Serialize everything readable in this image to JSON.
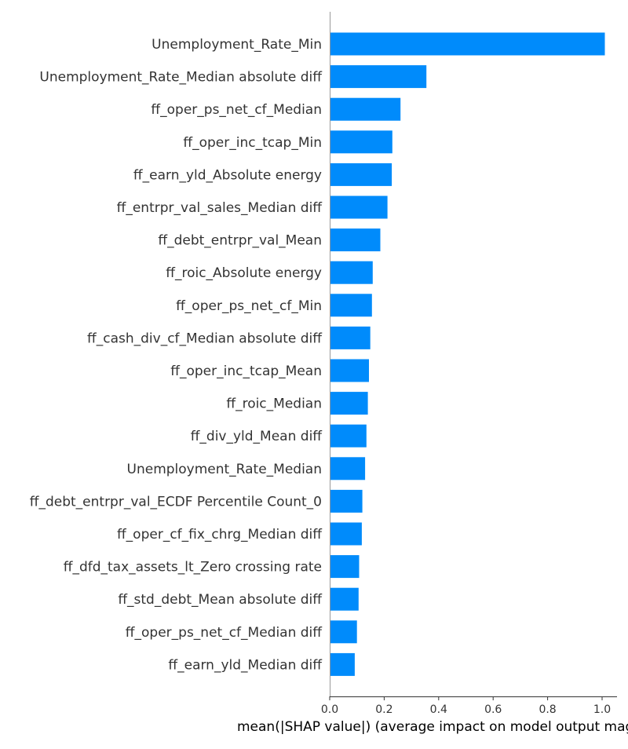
{
  "chart_data": {
    "type": "bar",
    "orientation": "horizontal",
    "title": "",
    "xlabel": "mean(|SHAP value|) (average impact on model output magnitude)",
    "ylabel": "",
    "xlim": [
      0,
      1.05
    ],
    "xticks": [
      "0.0",
      "0.2",
      "0.4",
      "0.6",
      "0.8",
      "1.0"
    ],
    "bar_color": "#008bfb",
    "grid": false,
    "legend": "none",
    "categories": [
      "Unemployment_Rate_Min",
      "Unemployment_Rate_Median absolute diff",
      "ff_oper_ps_net_cf_Median",
      "ff_oper_inc_tcap_Min",
      "ff_earn_yld_Absolute energy",
      "ff_entrpr_val_sales_Median diff",
      "ff_debt_entrpr_val_Mean",
      "ff_roic_Absolute energy",
      "ff_oper_ps_net_cf_Min",
      "ff_cash_div_cf_Median absolute diff",
      "ff_oper_inc_tcap_Mean",
      "ff_roic_Median",
      "ff_div_yld_Mean diff",
      "Unemployment_Rate_Median",
      "ff_debt_entrpr_val_ECDF Percentile Count_0",
      "ff_oper_cf_fix_chrg_Median diff",
      "ff_dfd_tax_assets_lt_Zero crossing rate",
      "ff_std_debt_Mean absolute diff",
      "ff_oper_ps_net_cf_Median diff",
      "ff_earn_yld_Median diff"
    ],
    "values": [
      1.01,
      0.355,
      0.26,
      0.23,
      0.228,
      0.212,
      0.186,
      0.158,
      0.155,
      0.149,
      0.144,
      0.14,
      0.135,
      0.13,
      0.12,
      0.118,
      0.108,
      0.106,
      0.1,
      0.092
    ]
  }
}
